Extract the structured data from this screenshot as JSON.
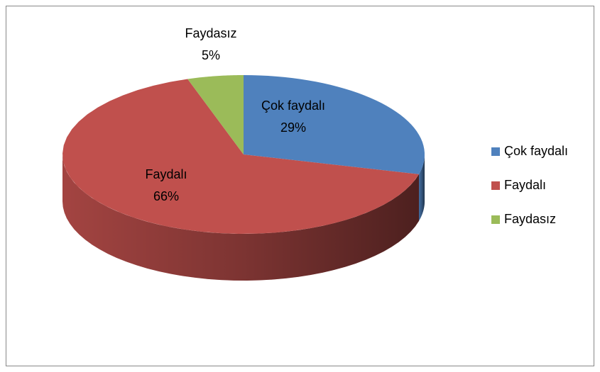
{
  "chart_data": {
    "type": "pie",
    "view": "3d",
    "categories": [
      "Çok faydalı",
      "Faydalı",
      "Faydasız"
    ],
    "values": [
      29,
      66,
      5
    ],
    "value_labels": [
      "29%",
      "66%",
      "5%"
    ],
    "colors": [
      "#4f81bd",
      "#c0504d",
      "#9bbb59"
    ],
    "legend": "right"
  }
}
